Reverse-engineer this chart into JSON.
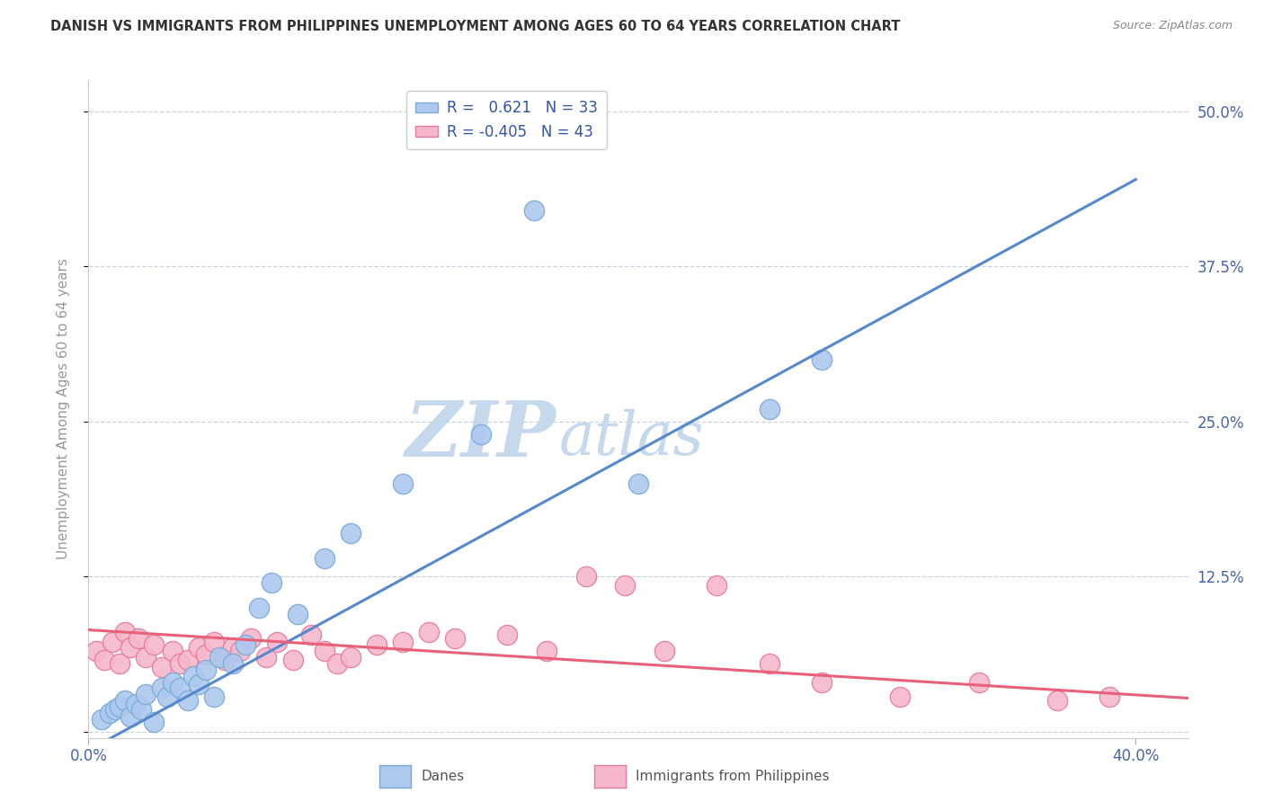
{
  "title": "DANISH VS IMMIGRANTS FROM PHILIPPINES UNEMPLOYMENT AMONG AGES 60 TO 64 YEARS CORRELATION CHART",
  "source": "Source: ZipAtlas.com",
  "ylabel": "Unemployment Among Ages 60 to 64 years",
  "xlim": [
    0.0,
    0.42
  ],
  "ylim": [
    -0.005,
    0.525
  ],
  "xticks": [
    0.0,
    0.4
  ],
  "xticklabels": [
    "0.0%",
    "40.0%"
  ],
  "ytick_positions": [
    0.0,
    0.125,
    0.25,
    0.375,
    0.5
  ],
  "ytick_labels": [
    "",
    "12.5%",
    "25.0%",
    "37.5%",
    "50.0%"
  ],
  "danes_color": "#adc9ef",
  "danes_edge_color": "#7baad6",
  "phils_color": "#f5b8cb",
  "phils_edge_color": "#e87aa0",
  "danes_line_color": "#5588cc",
  "phils_line_color": "#e8607a",
  "danes_R": 0.621,
  "danes_N": 33,
  "phils_R": -0.405,
  "phils_N": 43,
  "legend_R_color": "#3355aa",
  "watermark_zip": "ZIP",
  "watermark_atlas": "atlas",
  "watermark_color": "#c5d8ec",
  "danes_scatter_x": [
    0.005,
    0.008,
    0.01,
    0.012,
    0.014,
    0.016,
    0.018,
    0.02,
    0.022,
    0.025,
    0.028,
    0.03,
    0.032,
    0.035,
    0.038,
    0.04,
    0.042,
    0.045,
    0.048,
    0.05,
    0.055,
    0.06,
    0.065,
    0.07,
    0.08,
    0.09,
    0.1,
    0.12,
    0.15,
    0.17,
    0.21,
    0.26,
    0.28
  ],
  "danes_scatter_y": [
    0.01,
    0.015,
    0.018,
    0.02,
    0.025,
    0.012,
    0.022,
    0.018,
    0.03,
    0.008,
    0.035,
    0.028,
    0.04,
    0.035,
    0.025,
    0.045,
    0.038,
    0.05,
    0.028,
    0.06,
    0.055,
    0.07,
    0.1,
    0.12,
    0.095,
    0.14,
    0.16,
    0.2,
    0.24,
    0.42,
    0.2,
    0.26,
    0.3
  ],
  "phils_scatter_x": [
    0.003,
    0.006,
    0.009,
    0.012,
    0.014,
    0.016,
    0.019,
    0.022,
    0.025,
    0.028,
    0.032,
    0.035,
    0.038,
    0.042,
    0.045,
    0.048,
    0.052,
    0.055,
    0.058,
    0.062,
    0.068,
    0.072,
    0.078,
    0.085,
    0.09,
    0.095,
    0.1,
    0.11,
    0.12,
    0.13,
    0.14,
    0.16,
    0.175,
    0.19,
    0.205,
    0.22,
    0.24,
    0.26,
    0.28,
    0.31,
    0.34,
    0.37,
    0.39
  ],
  "phils_scatter_y": [
    0.065,
    0.058,
    0.072,
    0.055,
    0.08,
    0.068,
    0.075,
    0.06,
    0.07,
    0.052,
    0.065,
    0.055,
    0.058,
    0.068,
    0.062,
    0.072,
    0.058,
    0.068,
    0.065,
    0.075,
    0.06,
    0.072,
    0.058,
    0.078,
    0.065,
    0.055,
    0.06,
    0.07,
    0.072,
    0.08,
    0.075,
    0.078,
    0.065,
    0.125,
    0.118,
    0.065,
    0.118,
    0.055,
    0.04,
    0.028,
    0.04,
    0.025,
    0.028
  ],
  "background_color": "#ffffff",
  "grid_color": "#c8d4e0",
  "scatter_size": 160
}
